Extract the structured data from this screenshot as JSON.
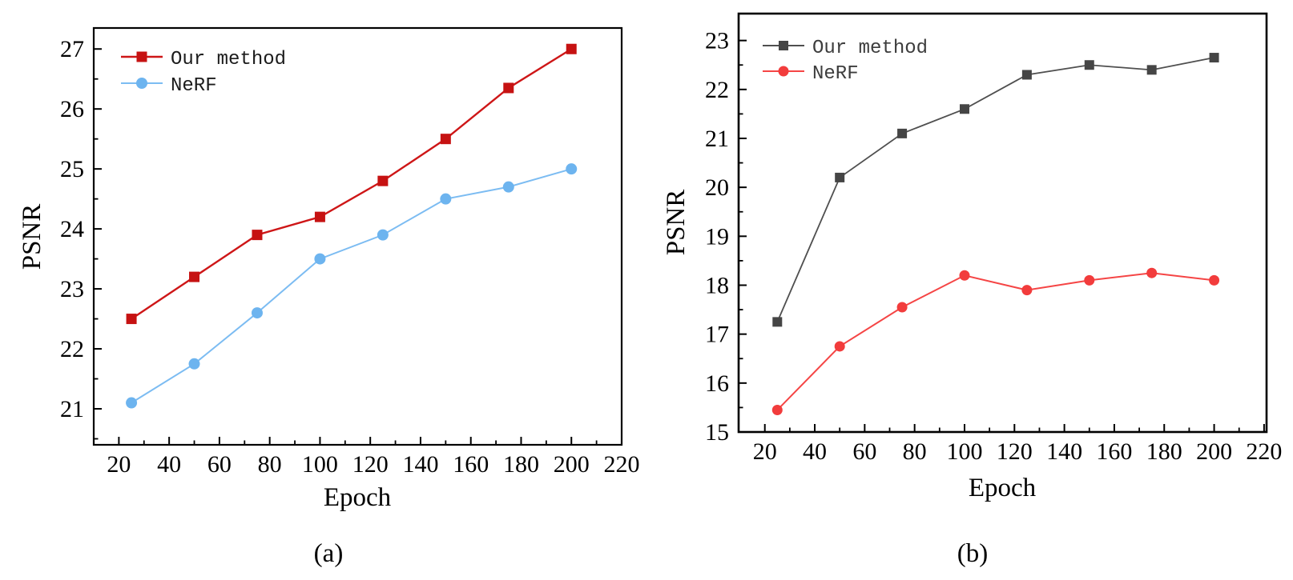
{
  "figure": {
    "captions": {
      "a": "(a)",
      "b": "(b)"
    }
  },
  "chart_data": [
    {
      "id": "a",
      "type": "line",
      "title": "",
      "xlabel": "Epoch",
      "ylabel": "PSNR",
      "x": [
        25,
        50,
        75,
        100,
        125,
        150,
        175,
        200
      ],
      "series": [
        {
          "name": "Our method",
          "marker": "square",
          "color": "#ce1617",
          "marker_color": "#c61212",
          "line_width": 2.4,
          "marker_size": 13,
          "values": [
            22.5,
            23.2,
            23.9,
            24.2,
            24.8,
            25.5,
            26.35,
            27.0
          ]
        },
        {
          "name": "NeRF",
          "marker": "circle",
          "color": "#7cbcf2",
          "marker_color": "#6db4ef",
          "line_width": 2.0,
          "marker_size": 14,
          "values": [
            21.1,
            21.75,
            22.6,
            23.5,
            23.9,
            24.5,
            24.7,
            25.0
          ]
        }
      ],
      "xlim": [
        10,
        220
      ],
      "ylim": [
        20.4,
        27.35
      ],
      "xticks": [
        20,
        40,
        60,
        80,
        100,
        120,
        140,
        160,
        180,
        200,
        220
      ],
      "yticks": [
        21,
        22,
        23,
        24,
        25,
        26,
        27
      ],
      "x_minor_step": 10,
      "y_minor_step": 0.5,
      "grid": false,
      "legend_position": "top-left",
      "legend_text_color": "#1c1c1c"
    },
    {
      "id": "b",
      "type": "line",
      "title": "",
      "xlabel": "Epoch",
      "ylabel": "PSNR",
      "x": [
        25,
        50,
        75,
        100,
        125,
        150,
        175,
        200
      ],
      "series": [
        {
          "name": "Our method",
          "marker": "square",
          "color": "#4f4f4f",
          "marker_color": "#454545",
          "line_width": 1.8,
          "marker_size": 12,
          "values": [
            17.25,
            20.2,
            21.1,
            21.6,
            22.3,
            22.5,
            22.4,
            22.65
          ]
        },
        {
          "name": "NeRF",
          "marker": "circle",
          "color": "#f54545",
          "marker_color": "#f23c3c",
          "line_width": 2.0,
          "marker_size": 13,
          "values": [
            15.45,
            16.75,
            17.55,
            18.2,
            17.9,
            18.1,
            18.25,
            18.1
          ]
        }
      ],
      "xlim": [
        9.5,
        221
      ],
      "ylim": [
        15,
        23.55
      ],
      "xticks": [
        20,
        40,
        60,
        80,
        100,
        120,
        140,
        160,
        180,
        200,
        220
      ],
      "yticks": [
        15,
        16,
        17,
        18,
        19,
        20,
        21,
        22,
        23
      ],
      "x_minor_step": 10,
      "y_minor_step": 0.5,
      "grid": false,
      "legend_position": "top-left",
      "legend_text_color": "#3d3d3d"
    }
  ]
}
